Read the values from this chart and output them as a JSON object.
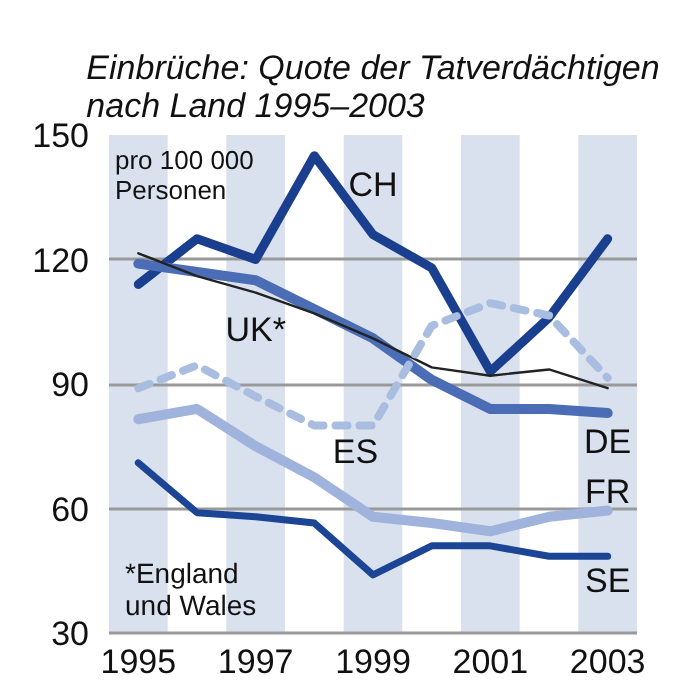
{
  "chart_data": {
    "type": "line",
    "title": "Einbrüche: Quote der Tatverdächtigen\nnach Land 1995–2003",
    "ylabel": "pro 100 000\nPersonen",
    "x": [
      1995,
      1996,
      1997,
      1998,
      1999,
      2000,
      2001,
      2002,
      2003
    ],
    "xlim": [
      1994.5,
      2003.5
    ],
    "xticks": [
      1995,
      1997,
      1999,
      2001,
      2003
    ],
    "ylim": [
      30,
      150
    ],
    "yticks": [
      30,
      60,
      90,
      120,
      150
    ],
    "grid": "y",
    "legend": false,
    "series": [
      {
        "name": "CH",
        "color": "#1b3f8f",
        "values": [
          114,
          125,
          120,
          145,
          126,
          118,
          93,
          106,
          125
        ]
      },
      {
        "name": "DE",
        "color": "#4a6db5",
        "values": [
          119,
          117,
          115,
          108,
          101,
          91,
          84,
          84,
          83
        ]
      },
      {
        "name": "UK*",
        "color": "#222222",
        "values": [
          121.5,
          116,
          112,
          107,
          101,
          94,
          92,
          93.5,
          89
        ]
      },
      {
        "name": "ES",
        "color": "#a9bde0",
        "line_style": "dashed",
        "values": [
          89,
          94.5,
          87,
          80,
          80,
          104,
          109.5,
          106.5,
          91.5
        ]
      },
      {
        "name": "FR",
        "color": "#9fb3dc",
        "values": [
          81.5,
          84,
          75,
          67.5,
          58,
          56.5,
          54.5,
          58,
          59.5
        ]
      },
      {
        "name": "SE",
        "color": "#1d4595",
        "values": [
          71,
          59,
          58,
          56.5,
          44,
          51,
          51,
          48.5,
          48.5
        ]
      }
    ],
    "bands": [
      {
        "axis": "x",
        "from": 1994.5,
        "to": 1995.5,
        "color": "#d9e0ee"
      },
      {
        "axis": "x",
        "from": 1996.5,
        "to": 1997.5,
        "color": "#d9e0ee"
      },
      {
        "axis": "x",
        "from": 1998.5,
        "to": 1999.5,
        "color": "#d9e0ee"
      },
      {
        "axis": "x",
        "from": 2000.5,
        "to": 2001.5,
        "color": "#d9e0ee"
      },
      {
        "axis": "x",
        "from": 2002.5,
        "to": 2003.5,
        "color": "#d9e0ee"
      }
    ],
    "annotations": [
      "*England\nund Wales"
    ]
  }
}
